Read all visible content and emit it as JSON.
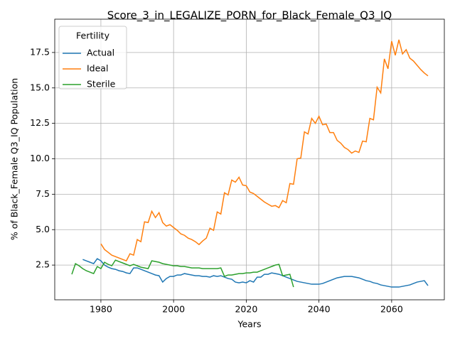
{
  "chart_data": {
    "type": "line",
    "title": "Score_3_in_LEGALIZE_PORN_for_Black_Female_Q3_IQ",
    "x_label": "Years",
    "y_label": "% of Black_Female Q3_IQ Population",
    "legend_title": "Fertility",
    "legend_position": "upper left",
    "grid": true,
    "xlim": [
      1967.3,
      2074.5
    ],
    "ylim": [
      0.05,
      19.85
    ],
    "xticks": [
      1980,
      2000,
      2020,
      2040,
      2060
    ],
    "yticks": [
      2.5,
      {
        "value": 5,
        "label": "5.0"
      },
      7.5,
      {
        "value": 10,
        "label": "10.0"
      },
      12.5,
      {
        "value": 15,
        "label": "15.0"
      },
      17.5
    ],
    "x": [
      1972,
      1973,
      1974,
      1975,
      1976,
      1977,
      1978,
      1979,
      1980,
      1981,
      1982,
      1983,
      1984,
      1985,
      1986,
      1987,
      1988,
      1989,
      1990,
      1991,
      1992,
      1993,
      1994,
      1995,
      1996,
      1997,
      1998,
      1999,
      2000,
      2001,
      2002,
      2003,
      2004,
      2005,
      2006,
      2007,
      2008,
      2009,
      2010,
      2011,
      2012,
      2013,
      2014,
      2015,
      2016,
      2017,
      2018,
      2019,
      2020,
      2021,
      2022,
      2023,
      2024,
      2025,
      2026,
      2027,
      2028,
      2029,
      2030,
      2031,
      2032,
      2033,
      2034,
      2035,
      2036,
      2037,
      2038,
      2039,
      2040,
      2041,
      2042,
      2043,
      2044,
      2045,
      2046,
      2047,
      2048,
      2049,
      2050,
      2051,
      2052,
      2053,
      2054,
      2055,
      2056,
      2057,
      2058,
      2059,
      2060,
      2061,
      2062,
      2063,
      2064,
      2065,
      2066,
      2067,
      2068,
      2069,
      2070
    ],
    "series": [
      {
        "name": "Actual",
        "color": "#1f77b4",
        "values": [
          null,
          null,
          null,
          2.9,
          2.8,
          2.7,
          2.6,
          2.95,
          2.8,
          2.5,
          2.35,
          2.25,
          2.2,
          2.1,
          2.05,
          1.95,
          1.9,
          2.3,
          2.3,
          2.2,
          2.1,
          2.0,
          1.9,
          1.8,
          1.75,
          1.3,
          1.55,
          1.7,
          1.7,
          1.8,
          1.8,
          1.9,
          1.85,
          1.8,
          1.75,
          1.75,
          1.7,
          1.7,
          1.65,
          1.75,
          1.7,
          1.75,
          1.65,
          1.55,
          1.5,
          1.3,
          1.25,
          1.3,
          1.25,
          1.4,
          1.3,
          1.65,
          1.65,
          1.85,
          1.85,
          1.95,
          1.9,
          1.85,
          1.75,
          1.65,
          1.55,
          1.45,
          1.35,
          1.3,
          1.25,
          1.2,
          1.15,
          1.15,
          1.15,
          1.2,
          1.3,
          1.4,
          1.5,
          1.6,
          1.65,
          1.7,
          1.7,
          1.7,
          1.65,
          1.6,
          1.5,
          1.4,
          1.35,
          1.25,
          1.2,
          1.1,
          1.05,
          1.0,
          0.95,
          0.95,
          0.95,
          1.0,
          1.05,
          1.1,
          1.2,
          1.3,
          1.35,
          1.4,
          1.05
        ]
      },
      {
        "name": "Ideal",
        "color": "#ff7f0e",
        "values": [
          null,
          null,
          null,
          null,
          null,
          null,
          null,
          null,
          4.0,
          3.6,
          3.4,
          3.2,
          3.1,
          3.0,
          2.9,
          2.8,
          3.3,
          3.2,
          4.3,
          4.15,
          5.55,
          5.5,
          6.3,
          5.85,
          6.2,
          5.5,
          5.25,
          5.35,
          5.15,
          4.95,
          4.7,
          4.6,
          4.4,
          4.3,
          4.15,
          3.95,
          4.2,
          4.4,
          5.1,
          4.95,
          6.25,
          6.1,
          7.6,
          7.45,
          8.5,
          8.35,
          8.7,
          8.15,
          8.1,
          7.65,
          7.55,
          7.35,
          7.15,
          6.95,
          6.8,
          6.65,
          6.7,
          6.55,
          7.05,
          6.9,
          8.25,
          8.2,
          10.0,
          10.05,
          11.9,
          11.75,
          12.85,
          12.5,
          13.0,
          12.4,
          12.45,
          11.85,
          11.85,
          11.3,
          11.1,
          10.8,
          10.65,
          10.4,
          10.55,
          10.45,
          11.25,
          11.2,
          12.85,
          12.75,
          15.05,
          14.65,
          17.05,
          16.35,
          18.3,
          17.3,
          18.4,
          17.4,
          17.7,
          17.1,
          16.9,
          16.6,
          16.3,
          16.05,
          15.85
        ]
      },
      {
        "name": "Sterile",
        "color": "#2ca02c",
        "values": [
          1.85,
          2.6,
          2.45,
          2.25,
          2.1,
          2.0,
          1.9,
          2.4,
          2.25,
          2.7,
          2.55,
          2.45,
          2.85,
          2.75,
          2.65,
          2.55,
          2.45,
          2.55,
          2.45,
          2.35,
          2.3,
          2.25,
          2.8,
          2.75,
          2.7,
          2.6,
          2.55,
          2.5,
          2.45,
          2.45,
          2.4,
          2.4,
          2.35,
          2.3,
          2.3,
          2.3,
          2.25,
          2.25,
          2.25,
          2.25,
          2.25,
          2.3,
          1.7,
          1.8,
          1.8,
          1.85,
          1.9,
          1.9,
          1.95,
          1.95,
          2.0,
          2.0,
          2.1,
          2.2,
          2.3,
          2.4,
          2.5,
          2.55,
          1.75,
          1.8,
          1.85,
          0.95,
          null,
          null,
          null,
          null,
          null,
          null,
          null,
          null,
          null,
          null,
          null,
          null,
          null,
          null,
          null,
          null,
          null,
          null,
          null,
          null,
          null,
          null,
          null,
          null,
          null,
          null,
          null,
          null,
          null,
          null,
          null,
          null,
          null,
          null,
          null,
          null,
          null
        ]
      }
    ]
  }
}
